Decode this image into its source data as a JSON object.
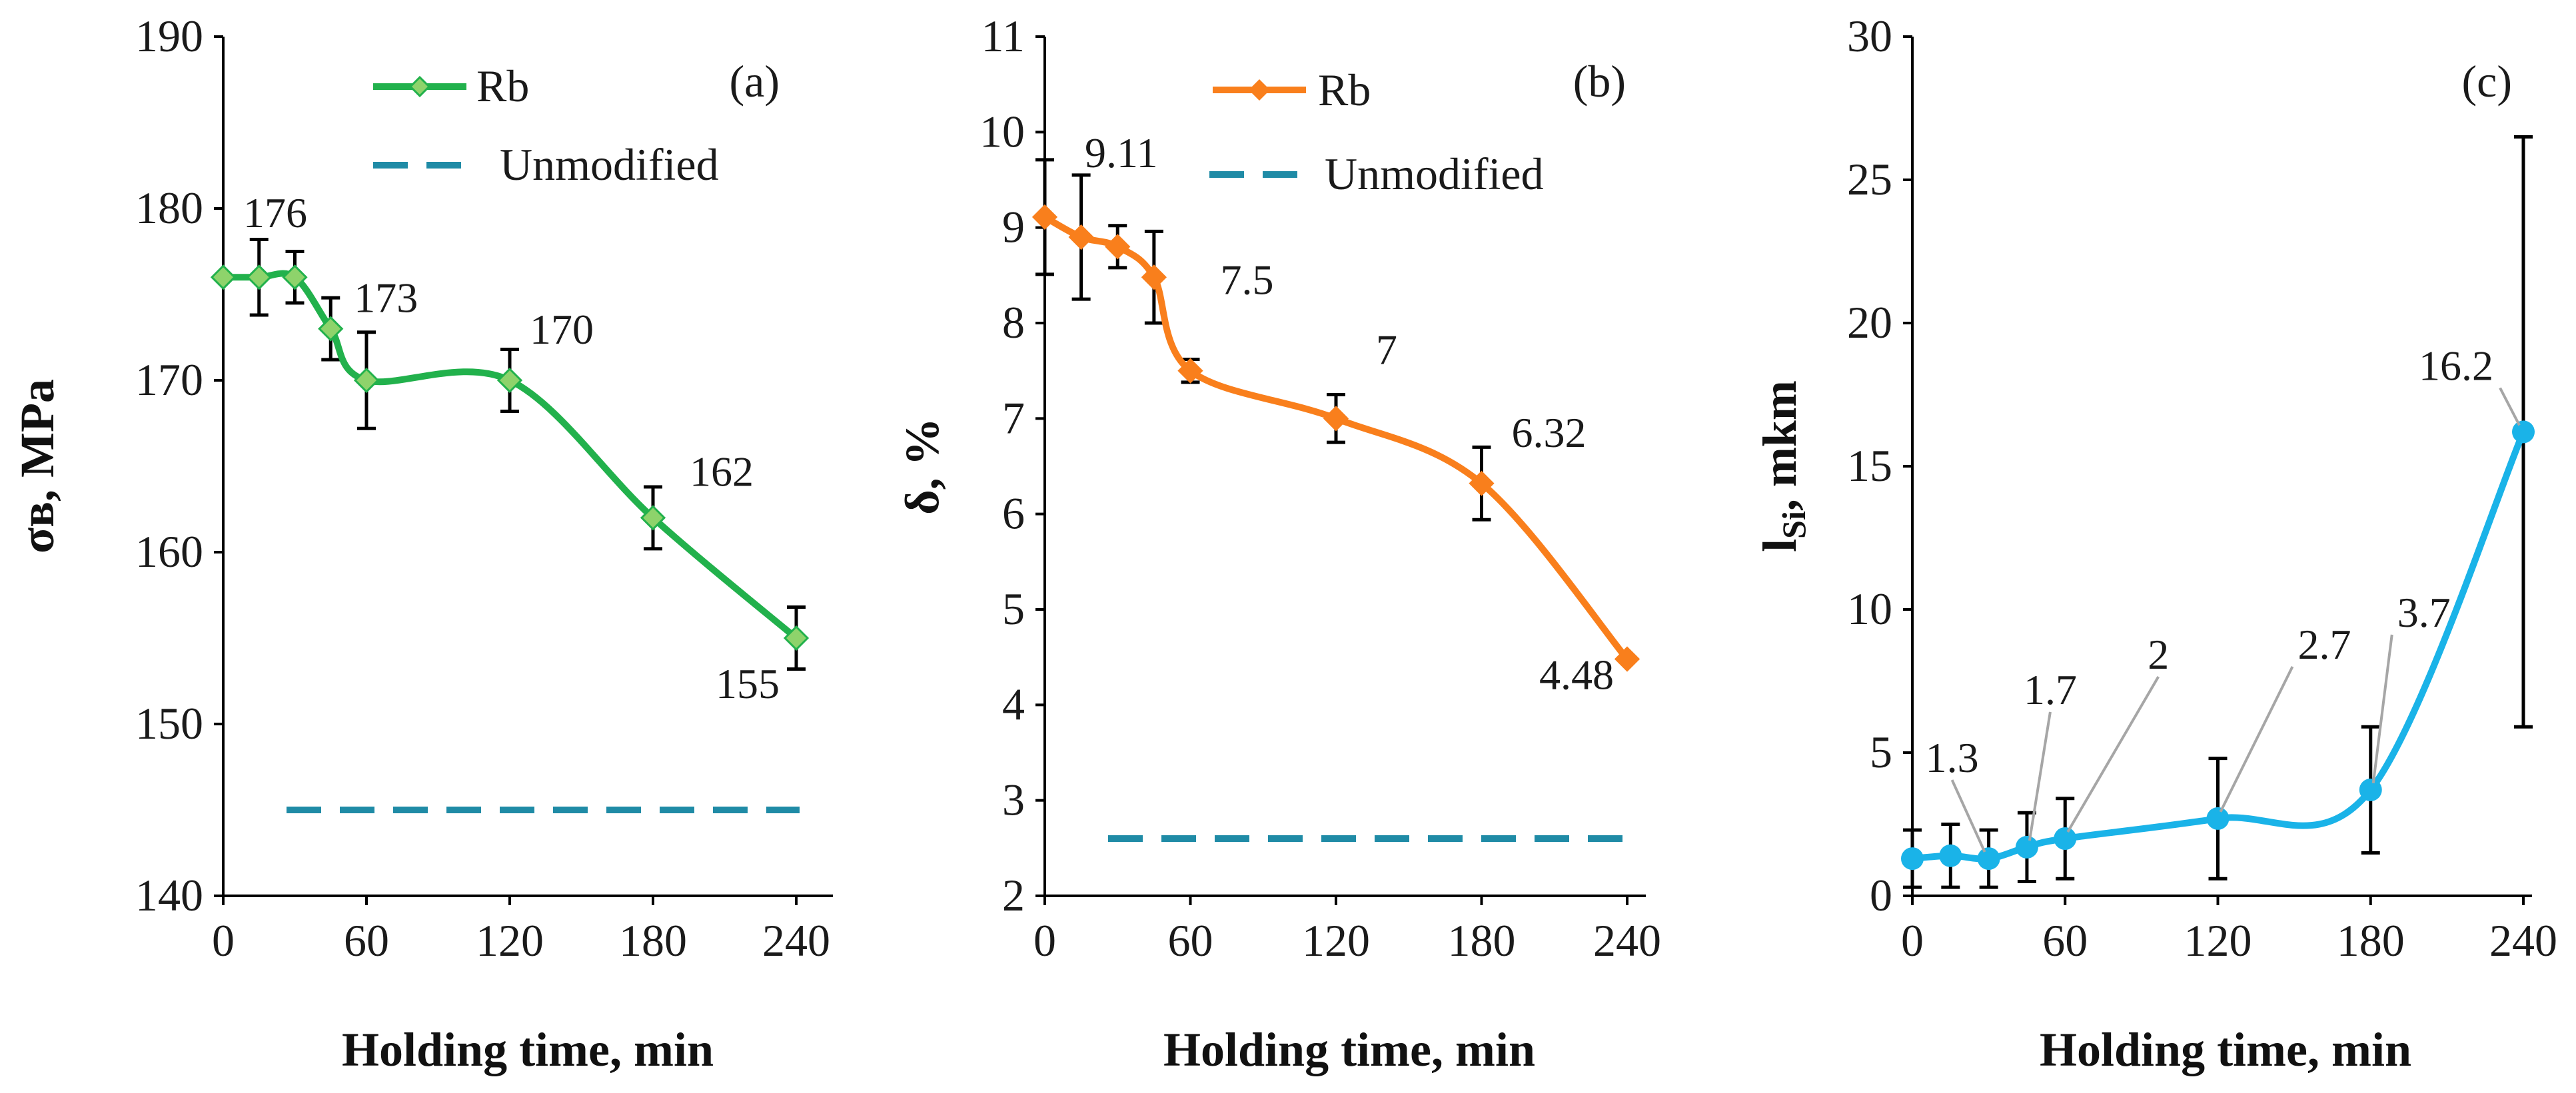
{
  "chart_data": [
    {
      "type": "line",
      "panel_label": "(a)",
      "xlabel": "Holding time, min",
      "ylabel": "σв, MPa",
      "xlim": [
        0,
        240
      ],
      "ylim": [
        140,
        190
      ],
      "yticks": [
        140,
        150,
        160,
        170,
        180,
        190
      ],
      "xticks": [
        0,
        60,
        120,
        180,
        240
      ],
      "series": [
        {
          "name": "Rb",
          "color": "#22b14c",
          "marker": "diamond",
          "x": [
            0,
            15,
            30,
            45,
            60,
            120,
            180,
            240
          ],
          "y": [
            176,
            176,
            176,
            173,
            170,
            170,
            162,
            155
          ],
          "err": [
            0,
            2.2,
            1.5,
            1.8,
            2.8,
            1.8,
            1.8,
            1.8
          ]
        }
      ],
      "reference": {
        "name": "Unmodified",
        "value": 145,
        "color": "#1f8ba6"
      },
      "data_labels": [
        {
          "text": "176",
          "x": 0,
          "y": 176
        },
        {
          "text": "173",
          "x": 45,
          "y": 173
        },
        {
          "text": "170",
          "x": 120,
          "y": 170
        },
        {
          "text": "162",
          "x": 180,
          "y": 162
        },
        {
          "text": "155",
          "x": 240,
          "y": 155
        }
      ]
    },
    {
      "type": "line",
      "panel_label": "(b)",
      "xlabel": "Holding time, min",
      "ylabel": "δ, %",
      "xlim": [
        0,
        240
      ],
      "ylim": [
        2,
        11
      ],
      "yticks": [
        2,
        3,
        4,
        5,
        6,
        7,
        8,
        9,
        10,
        11
      ],
      "xticks": [
        0,
        60,
        120,
        180,
        240
      ],
      "series": [
        {
          "name": "Rb",
          "color": "#f97f1c",
          "marker": "diamond",
          "x": [
            0,
            15,
            30,
            45,
            60,
            120,
            180,
            240
          ],
          "y": [
            9.11,
            8.9,
            8.8,
            8.48,
            7.5,
            7.0,
            6.32,
            4.48
          ],
          "err": [
            0.6,
            0.65,
            0.22,
            0.48,
            0.12,
            0.25,
            0.38,
            0
          ]
        }
      ],
      "reference": {
        "name": "Unmodified",
        "value": 2.6,
        "color": "#1f8ba6"
      },
      "data_labels": [
        {
          "text": "9.11",
          "x": 0,
          "y": 9.11
        },
        {
          "text": "7.5",
          "x": 60,
          "y": 7.5
        },
        {
          "text": "7",
          "x": 120,
          "y": 7.0
        },
        {
          "text": "6.32",
          "x": 180,
          "y": 6.32
        },
        {
          "text": "4.48",
          "x": 240,
          "y": 4.48
        }
      ]
    },
    {
      "type": "line",
      "panel_label": "(c)",
      "xlabel": "Holding time, min",
      "ylabel": "l",
      "ylabel_sub": "Si",
      "ylabel_unit": ", mkm",
      "xlim": [
        0,
        240
      ],
      "ylim": [
        0,
        30
      ],
      "yticks": [
        0,
        5,
        10,
        15,
        20,
        25,
        30
      ],
      "xticks": [
        0,
        60,
        120,
        180,
        240
      ],
      "series": [
        {
          "name": "",
          "color": "#1ab3e8",
          "marker": "circle",
          "x": [
            0,
            15,
            30,
            45,
            60,
            120,
            180,
            240
          ],
          "y": [
            1.3,
            1.4,
            1.3,
            1.7,
            2.0,
            2.7,
            3.7,
            16.2
          ],
          "err": [
            1.0,
            1.1,
            1.0,
            1.2,
            1.4,
            2.1,
            2.2,
            10.3
          ]
        }
      ],
      "data_labels": [
        {
          "text": "1.3",
          "x": 30,
          "y": 1.3
        },
        {
          "text": "1.7",
          "x": 45,
          "y": 1.7
        },
        {
          "text": "2",
          "x": 60,
          "y": 2.0
        },
        {
          "text": "2.7",
          "x": 120,
          "y": 2.7
        },
        {
          "text": "3.7",
          "x": 180,
          "y": 3.7
        },
        {
          "text": "16.2",
          "x": 240,
          "y": 16.2
        }
      ]
    }
  ]
}
